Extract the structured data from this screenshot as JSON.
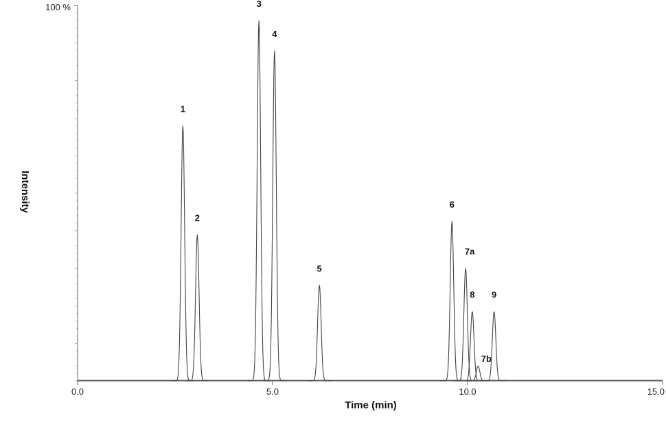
{
  "chart_data": {
    "type": "line",
    "title": "",
    "xlabel": "Time (min)",
    "ylabel": "Intensity",
    "xlim": [
      0.0,
      15.0
    ],
    "ylim": [
      0,
      100
    ],
    "x_ticks": [
      0.0,
      5.0,
      10.0,
      15.0
    ],
    "x_tick_labels": [
      "0.0",
      "5.0",
      "10.0",
      "15.0"
    ],
    "y_ticks": [
      100
    ],
    "y_tick_labels": [
      "100 %"
    ],
    "grid": false,
    "legend": "none",
    "trace_color": "#444444",
    "peaks": [
      {
        "label": "1",
        "time": 2.7,
        "intensity": 68
      },
      {
        "label": "2",
        "time": 3.07,
        "intensity": 39
      },
      {
        "label": "3",
        "time": 4.65,
        "intensity": 96
      },
      {
        "label": "4",
        "time": 5.05,
        "intensity": 88
      },
      {
        "label": "5",
        "time": 6.2,
        "intensity": 25.5
      },
      {
        "label": "6",
        "time": 9.6,
        "intensity": 42.5
      },
      {
        "label": "7a",
        "time": 9.95,
        "intensity": 30
      },
      {
        "label": "8",
        "time": 10.12,
        "intensity": 18.5
      },
      {
        "label": "7b",
        "time": 10.27,
        "intensity": 4
      },
      {
        "label": "9",
        "time": 10.68,
        "intensity": 18.5
      }
    ]
  }
}
